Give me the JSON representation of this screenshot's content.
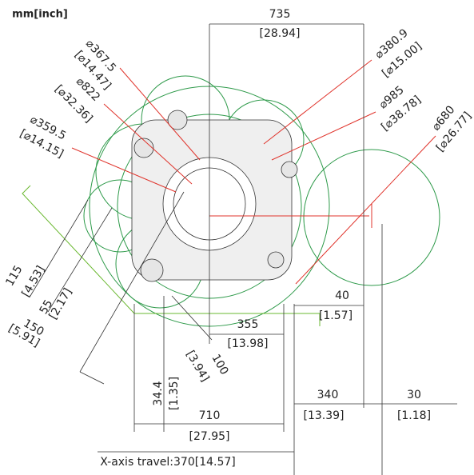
{
  "unit_label": "mm[inch]",
  "dimensions": [
    {
      "value": "735",
      "inch": "[28.94]"
    },
    {
      "value": "⌀367.5",
      "inch": "[⌀14.47]"
    },
    {
      "value": "⌀822",
      "inch": "[⌀32.36]"
    },
    {
      "value": "⌀359.5",
      "inch": "[⌀14.15]"
    },
    {
      "value": "⌀380.9",
      "inch": "[⌀15.00]"
    },
    {
      "value": "⌀985",
      "inch": "[⌀38.78]"
    },
    {
      "value": "⌀680",
      "inch": "[⌀26.77]"
    },
    {
      "value": "115",
      "inch": "[4.53]"
    },
    {
      "value": "55",
      "inch": "[2.17]"
    },
    {
      "value": "150",
      "inch": "[5.91]"
    },
    {
      "value": "40",
      "inch": "[1.57]"
    },
    {
      "value": "355",
      "inch": "[13.98]"
    },
    {
      "value": "100",
      "inch": "[3.94]"
    },
    {
      "value": "34.4",
      "inch": "[1.35]"
    },
    {
      "value": "710",
      "inch": "[27.95]"
    },
    {
      "value": "340",
      "inch": "[13.39]"
    },
    {
      "value": "30",
      "inch": "[1.18]"
    }
  ],
  "note": "X-axis travel:370[14.57]"
}
